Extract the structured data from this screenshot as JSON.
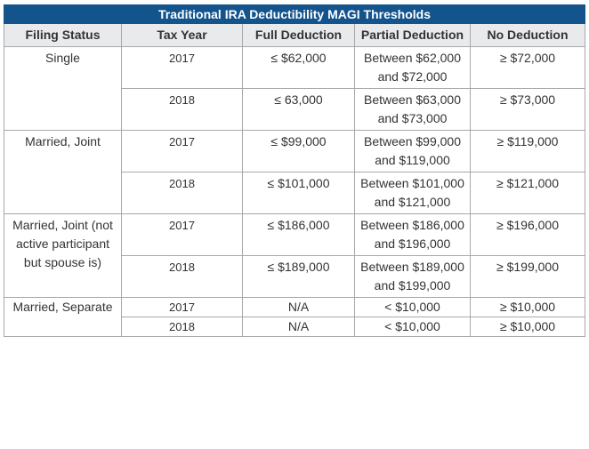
{
  "table": {
    "title": "Traditional IRA Deductibility MAGI Thresholds",
    "headers": {
      "filing_status": "Filing Status",
      "tax_year": "Tax Year",
      "full_deduction": "Full Deduction",
      "partial_deduction": "Partial Deduction",
      "no_deduction": "No Deduction"
    },
    "groups": [
      {
        "status": "Single",
        "rows": [
          {
            "year": "2017",
            "full": "≤ $62,000",
            "partial": "Between $62,000 and $72,000",
            "none": "≥ $72,000"
          },
          {
            "year": "2018",
            "full": "≤ 63,000",
            "partial": "Between $63,000 and $73,000",
            "none": "≥ $73,000"
          }
        ]
      },
      {
        "status": "Married, Joint",
        "rows": [
          {
            "year": "2017",
            "full": "≤ $99,000",
            "partial": "Between $99,000 and $119,000",
            "none": "≥ $119,000"
          },
          {
            "year": "2018",
            "full": "≤ $101,000",
            "partial": "Between $101,000 and $121,000",
            "none": "≥ $121,000"
          }
        ]
      },
      {
        "status": "Married, Joint (not active participant but spouse is)",
        "rows": [
          {
            "year": "2017",
            "full": "≤ $186,000",
            "partial": "Between $186,000 and $196,000",
            "none": "≥ $196,000"
          },
          {
            "year": "2018",
            "full": "≤ $189,000",
            "partial": "Between $189,000 and $199,000",
            "none": "≥ $199,000"
          }
        ]
      },
      {
        "status": "Married, Separate",
        "rows": [
          {
            "year": "2017",
            "full": "N/A",
            "partial": "< $10,000",
            "none": "≥ $10,000"
          },
          {
            "year": "2018",
            "full": "N/A",
            "partial": "< $10,000",
            "none": "≥ $10,000"
          }
        ]
      }
    ]
  }
}
